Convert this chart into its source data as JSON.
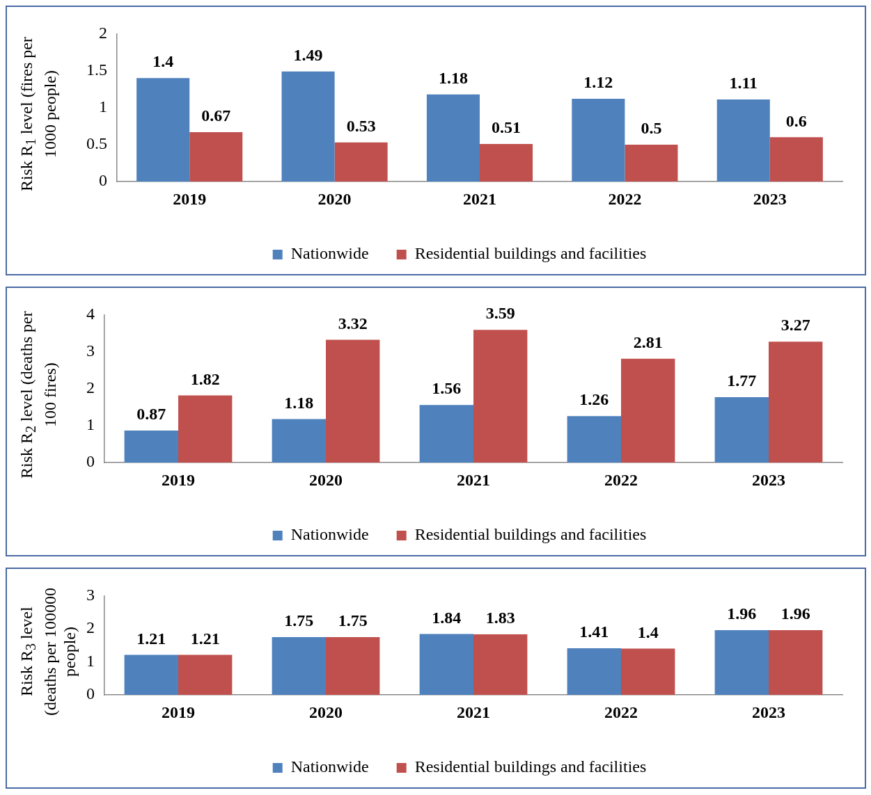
{
  "chart_data": [
    {
      "type": "bar",
      "ylabel": "Risk R$_{1}$ level (fires  per 1000 people)",
      "categories": [
        "2019",
        "2020",
        "2021",
        "2022",
        "2023"
      ],
      "series": [
        {
          "name": "Nationwide",
          "color": "#4f81bd",
          "values": [
            1.4,
            1.49,
            1.18,
            1.12,
            1.11
          ]
        },
        {
          "name": "Residential buildings and facilities",
          "color": "#c0504d",
          "values": [
            0.67,
            0.53,
            0.51,
            0.5,
            0.6
          ]
        }
      ],
      "ylim": [
        0,
        2
      ],
      "yticks": [
        0,
        0.5,
        1,
        1.5,
        2
      ],
      "grid": false,
      "legend": "bottom",
      "data_labels": true
    },
    {
      "type": "bar",
      "ylabel": "Risk R$_{2}$ level (deaths per 100 fires)",
      "categories": [
        "2019",
        "2020",
        "2021",
        "2022",
        "2023"
      ],
      "series": [
        {
          "name": "Nationwide",
          "color": "#4f81bd",
          "values": [
            0.87,
            1.18,
            1.56,
            1.26,
            1.77
          ]
        },
        {
          "name": "Residential buildings and facilities",
          "color": "#c0504d",
          "values": [
            1.82,
            3.32,
            3.59,
            2.81,
            3.27
          ]
        }
      ],
      "ylim": [
        0,
        4
      ],
      "yticks": [
        0,
        1,
        2,
        3,
        4
      ],
      "grid": false,
      "legend": "bottom",
      "data_labels": true
    },
    {
      "type": "bar",
      "ylabel": "Risk R$_{3}$ level (deaths per 100000 people)",
      "categories": [
        "2019",
        "2020",
        "2021",
        "2022",
        "2023"
      ],
      "series": [
        {
          "name": "Nationwide",
          "color": "#4f81bd",
          "values": [
            1.21,
            1.75,
            1.84,
            1.41,
            1.96
          ]
        },
        {
          "name": "Residential buildings and facilities",
          "color": "#c0504d",
          "values": [
            1.21,
            1.75,
            1.83,
            1.4,
            1.96
          ]
        }
      ],
      "ylim": [
        0,
        3
      ],
      "yticks": [
        0,
        1,
        2,
        3
      ],
      "grid": false,
      "legend": "bottom",
      "data_labels": true
    }
  ]
}
